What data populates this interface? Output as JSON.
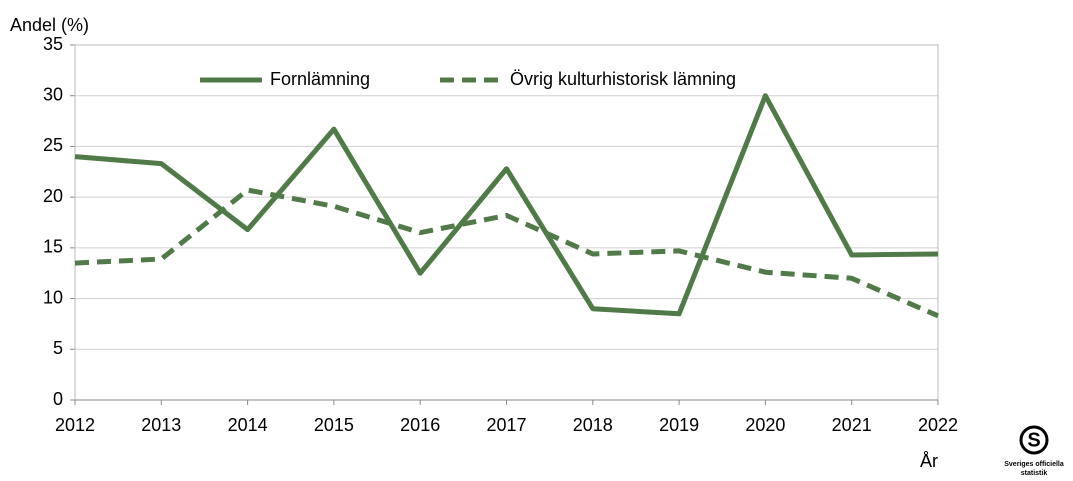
{
  "chart_data": {
    "type": "line",
    "y_label": "Andel (%)",
    "x_label": "År",
    "categories": [
      "2012",
      "2013",
      "2014",
      "2015",
      "2016",
      "2017",
      "2018",
      "2019",
      "2020",
      "2021",
      "2022"
    ],
    "series": [
      {
        "name": "Fornlämning",
        "color": "#507a48",
        "dash": false,
        "values": [
          24.0,
          23.3,
          16.8,
          26.7,
          12.5,
          22.8,
          9.0,
          8.5,
          30.0,
          14.3,
          14.4
        ]
      },
      {
        "name": "Övrig kulturhistorisk lämning",
        "color": "#507a48",
        "dash": true,
        "values": [
          13.5,
          13.9,
          20.7,
          19.1,
          16.5,
          18.2,
          14.4,
          14.7,
          12.6,
          12.0,
          8.3
        ]
      }
    ],
    "ylim": [
      0,
      35
    ],
    "yticks": [
      0,
      5,
      10,
      15,
      20,
      25,
      30,
      35
    ],
    "grid": true,
    "legend": "top",
    "logo": {
      "line1": "Sveriges officiella",
      "line2": "statistik"
    }
  }
}
